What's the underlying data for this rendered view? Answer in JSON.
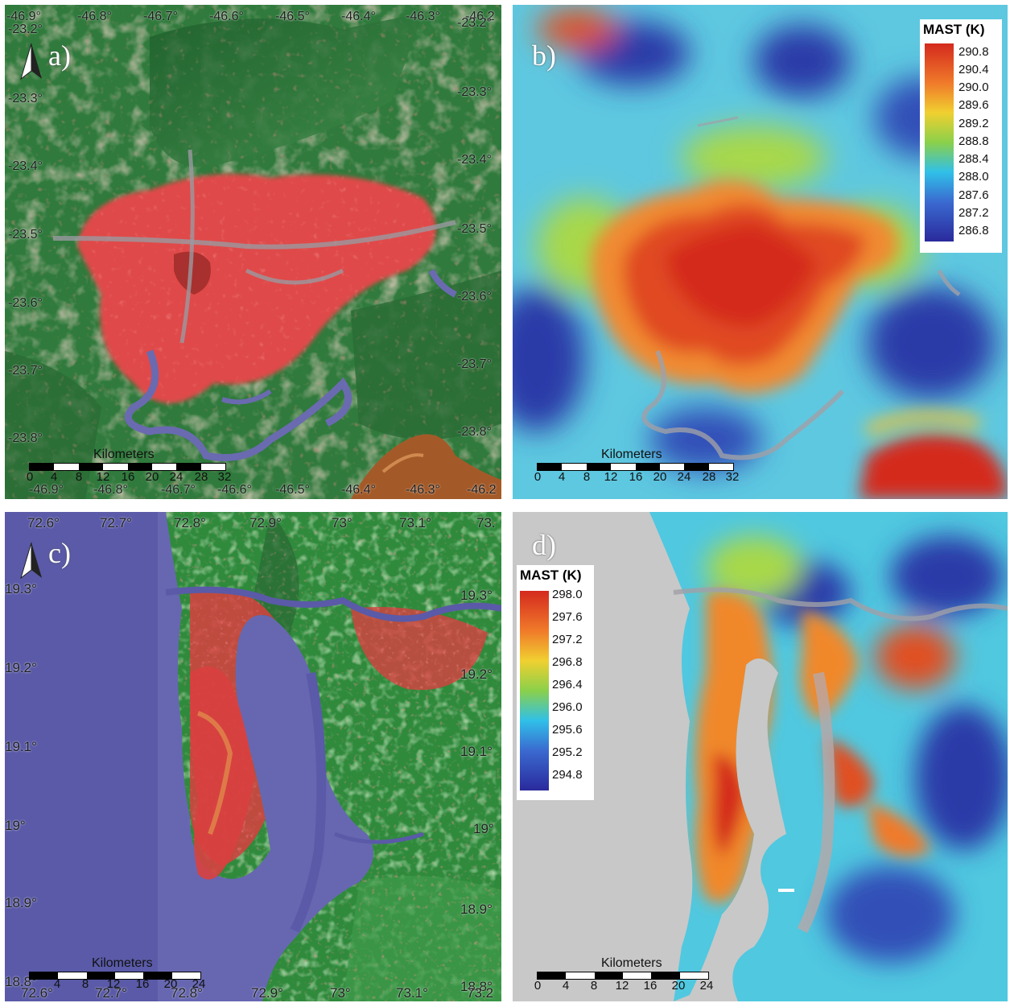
{
  "panels": {
    "a": {
      "label": "a)",
      "lon_top": [
        "-46.9°",
        "-46.8°",
        "-46.7°",
        "-46.6°",
        "-46.5°",
        "-46.4°",
        "-46.3°",
        "-46.2"
      ],
      "lon_bottom": [
        "-46.9°",
        "-46.8°",
        "-46.7°",
        "-46.6°",
        "-46.5°",
        "-46.4°",
        "-46.3°",
        "-46.2"
      ],
      "lat_left": [
        "-23.2°",
        "-23.3°",
        "-23.4°",
        "-23.5°",
        "-23.6°",
        "-23.7°",
        "-23.8°"
      ],
      "lat_right": [
        "-23.2°",
        "-23.3°",
        "-23.4°",
        "-23.5°",
        "-23.6°",
        "-23.7°",
        "-23.8°"
      ],
      "scale": {
        "title": "Kilometers",
        "ticks": [
          "0",
          "4",
          "8",
          "12",
          "16",
          "20",
          "24",
          "28",
          "32"
        ]
      }
    },
    "b": {
      "label": "b)",
      "legend": {
        "title": "MAST (K)",
        "ticks": [
          "290.8",
          "290.4",
          "290.0",
          "289.6",
          "289.2",
          "288.8",
          "288.4",
          "288.0",
          "287.6",
          "287.2",
          "286.8"
        ]
      },
      "scale": {
        "title": "Kilometers",
        "ticks": [
          "0",
          "4",
          "8",
          "12",
          "16",
          "20",
          "24",
          "28",
          "32"
        ]
      }
    },
    "c": {
      "label": "c)",
      "lon_top": [
        "72.6°",
        "72.7°",
        "72.8°",
        "72.9°",
        "73°",
        "73.1°",
        "73."
      ],
      "lon_bottom": [
        "72.6°",
        "72.7°",
        "72.8°",
        "72.9°",
        "73°",
        "73.1°",
        "73.2"
      ],
      "lat_left": [
        "19.3°",
        "19.2°",
        "19.1°",
        "19°",
        "18.9°",
        "18.8°"
      ],
      "lat_right": [
        "19.3°",
        "19.2°",
        "19.1°",
        "19°",
        "18.9°",
        "18.8°"
      ],
      "scale": {
        "title": "Kilometers",
        "ticks": [
          "0",
          "4",
          "8",
          "12",
          "16",
          "20",
          "24"
        ]
      }
    },
    "d": {
      "label": "d)",
      "legend": {
        "title": "MAST (K)",
        "ticks": [
          "298.0",
          "297.6",
          "297.2",
          "296.8",
          "296.4",
          "296.0",
          "295.6",
          "295.2",
          "294.8"
        ]
      },
      "scale": {
        "title": "Kilometers",
        "ticks": [
          "0",
          "4",
          "8",
          "12",
          "16",
          "20",
          "24"
        ]
      }
    }
  },
  "colors": {
    "forest": "#2f7a3c",
    "forest_light": "#5aa05a",
    "bare": "#d9a994",
    "urban": "#e04848",
    "urban_dark": "#a8302e",
    "road_grey": "#9a9aa0",
    "water": "#6a6ab0",
    "ocean": "#5a5aa8",
    "mountain_brown": "#a45a28",
    "heat_low": "#2a2a9c",
    "heat_mid": "#7ad04a",
    "heat_high": "#d42a1e",
    "nodata_grey": "#c8c8c8"
  }
}
